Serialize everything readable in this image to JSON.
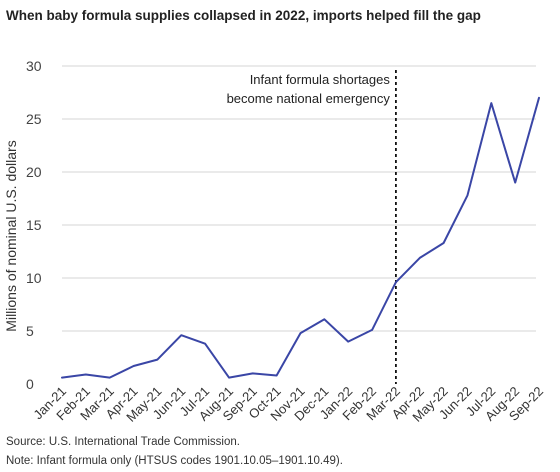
{
  "chart_data": {
    "type": "line",
    "title": "When baby formula supplies collapsed in 2022, imports helped fill the gap",
    "ylabel": "Millions of nominal U.S. dollars",
    "xlabel": "",
    "ylim": [
      0,
      30
    ],
    "yticks": [
      0,
      5,
      10,
      15,
      20,
      25,
      30
    ],
    "grid": true,
    "categories": [
      "Jan-21",
      "Feb-21",
      "Mar-21",
      "Apr-21",
      "May-21",
      "Jun-21",
      "Jul-21",
      "Aug-21",
      "Sep-21",
      "Oct-21",
      "Nov-21",
      "Dec-21",
      "Jan-22",
      "Feb-22",
      "Mar-22",
      "Apr-22",
      "May-22",
      "Jun-22",
      "Jul-22",
      "Aug-22",
      "Sep-22"
    ],
    "series": [
      {
        "color": "#3a46a6",
        "values": [
          0.6,
          0.9,
          0.6,
          1.7,
          2.3,
          4.6,
          3.8,
          0.6,
          1.0,
          0.8,
          4.8,
          6.1,
          4.0,
          5.1,
          9.6,
          11.9,
          13.3,
          17.8,
          26.5,
          19.0,
          27.0
        ]
      }
    ],
    "annotation": {
      "at_category": "Mar-22",
      "lines": [
        "Infant formula shortages",
        "become national emergency"
      ]
    }
  },
  "footer": {
    "source": "Source: U.S. International Trade Commission.",
    "note": "Note: Infant formula only (HTSUS codes 1901.10.05–1901.10.49)."
  }
}
